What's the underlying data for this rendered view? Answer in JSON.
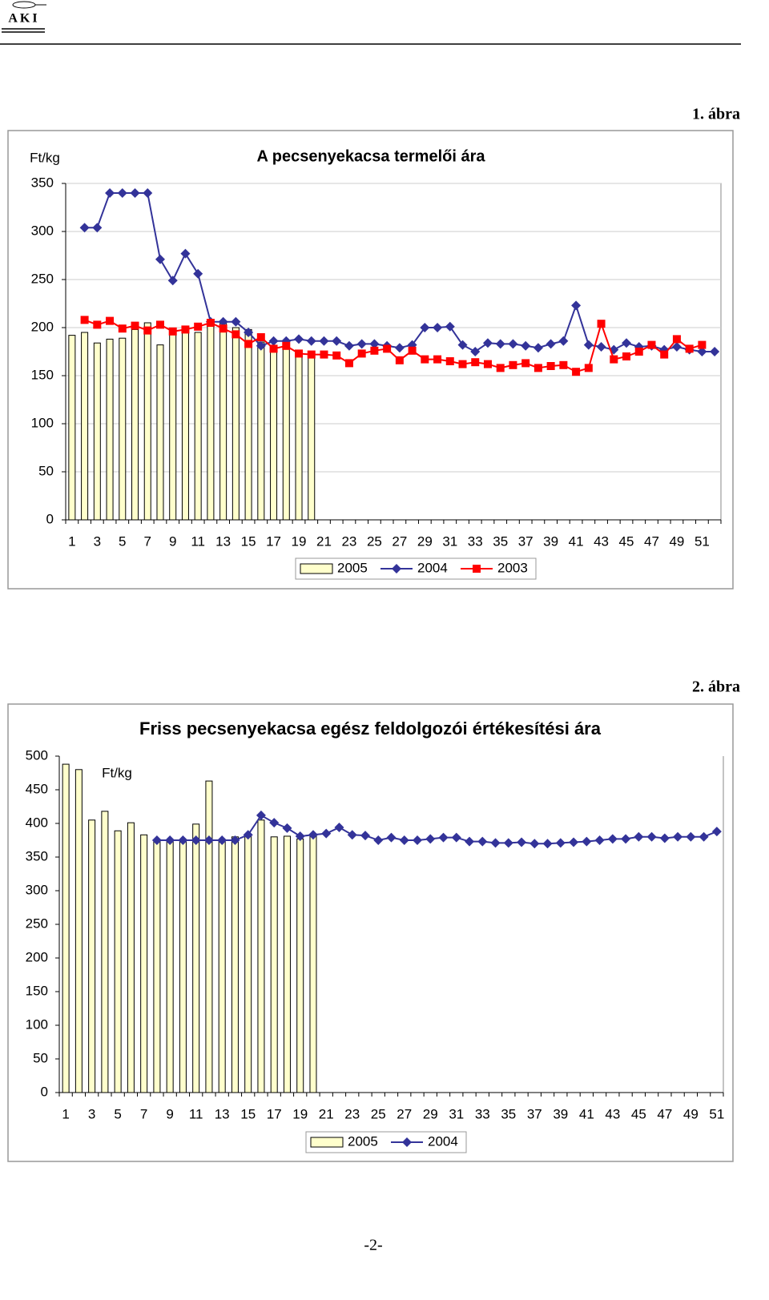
{
  "header": {
    "logo": "AKI"
  },
  "figures": [
    "1. ábra",
    "2. ábra"
  ],
  "footer": {
    "page": "-2-"
  },
  "chart_data": [
    {
      "type": "combo",
      "title": "A pecsenyekacsa termelői ára",
      "y_label": "Ft/kg",
      "categories": [
        "1",
        null,
        "3",
        null,
        "5",
        null,
        "7",
        null,
        "9",
        null,
        "11",
        null,
        "13",
        null,
        "15",
        null,
        "17",
        null,
        "19",
        null,
        "21",
        null,
        "23",
        null,
        "25",
        null,
        "27",
        null,
        "29",
        null,
        "31",
        null,
        "33",
        null,
        "35",
        null,
        "37",
        null,
        "39",
        null,
        "41",
        null,
        "43",
        null,
        "45",
        null,
        "47",
        null,
        "49",
        null,
        "51",
        null
      ],
      "series": [
        {
          "name": "2005",
          "type": "bar",
          "color": "#ffffcc",
          "values": [
            192,
            195,
            184,
            188,
            189,
            198,
            205,
            182,
            198,
            198,
            195,
            205,
            205,
            200,
            198,
            185,
            180,
            180,
            175,
            175,
            null,
            null,
            null,
            null,
            null,
            null,
            null,
            null,
            null,
            null,
            null,
            null,
            null,
            null,
            null,
            null,
            null,
            null,
            null,
            null,
            null,
            null,
            null,
            null,
            null,
            null,
            null,
            null,
            null,
            null,
            null,
            null
          ]
        },
        {
          "name": "2004",
          "type": "line",
          "marker": "diamond",
          "color": "#333399",
          "values": [
            null,
            304,
            304,
            340,
            340,
            340,
            340,
            271,
            249,
            277,
            256,
            206,
            206,
            206,
            195,
            181,
            186,
            186,
            188,
            186,
            186,
            186,
            181,
            183,
            183,
            181,
            179,
            182,
            200,
            200,
            201,
            182,
            175,
            184,
            183,
            183,
            181,
            179,
            183,
            186,
            223,
            182,
            180,
            177,
            184,
            180,
            181,
            177,
            180,
            177,
            175,
            175
          ]
        },
        {
          "name": "2003",
          "type": "line",
          "marker": "square",
          "color": "#ff0000",
          "values": [
            null,
            208,
            203,
            207,
            199,
            202,
            197,
            203,
            196,
            198,
            201,
            205,
            199,
            193,
            183,
            190,
            178,
            181,
            173,
            172,
            172,
            171,
            163,
            173,
            176,
            178,
            166,
            176,
            167,
            167,
            165,
            162,
            164,
            162,
            158,
            161,
            163,
            158,
            160,
            161,
            154,
            158,
            204,
            167,
            170,
            175,
            182,
            172,
            188,
            178,
            182,
            null
          ]
        }
      ],
      "ylim": [
        0,
        350
      ],
      "yticks": [
        0,
        50,
        100,
        150,
        200,
        250,
        300,
        350
      ],
      "grid": true
    },
    {
      "type": "combo",
      "title": "Friss pecsenyekacsa egész feldolgozói értékesítési ára",
      "y_label": "Ft/kg",
      "categories": [
        "1",
        null,
        "3",
        null,
        "5",
        null,
        "7",
        null,
        "9",
        null,
        "11",
        null,
        "13",
        null,
        "15",
        null,
        "17",
        null,
        "19",
        null,
        "21",
        null,
        "23",
        null,
        "25",
        null,
        "27",
        null,
        "29",
        null,
        "31",
        null,
        "33",
        null,
        "35",
        null,
        "37",
        null,
        "39",
        null,
        "41",
        null,
        "43",
        null,
        "45",
        null,
        "47",
        null,
        "49",
        null,
        "51"
      ],
      "series": [
        {
          "name": "2005",
          "type": "bar",
          "color": "#ffffcc",
          "values": [
            488,
            480,
            405,
            418,
            389,
            401,
            383,
            374,
            375,
            375,
            399,
            463,
            375,
            380,
            382,
            405,
            380,
            381,
            377,
            381,
            null,
            null,
            null,
            null,
            null,
            null,
            null,
            null,
            null,
            null,
            null,
            null,
            null,
            null,
            null,
            null,
            null,
            null,
            null,
            null,
            null,
            null,
            null,
            null,
            null,
            null,
            null,
            null,
            null,
            null,
            null
          ]
        },
        {
          "name": "2004",
          "type": "line",
          "marker": "diamond",
          "color": "#333399",
          "values": [
            null,
            null,
            null,
            null,
            null,
            null,
            null,
            375,
            375,
            375,
            375,
            375,
            375,
            375,
            383,
            412,
            401,
            393,
            381,
            383,
            385,
            394,
            383,
            382,
            375,
            379,
            375,
            375,
            377,
            379,
            379,
            373,
            373,
            371,
            371,
            372,
            370,
            370,
            371,
            372,
            373,
            375,
            377,
            377,
            380,
            380,
            378,
            380,
            380,
            380,
            388
          ]
        }
      ],
      "ylim": [
        0,
        500
      ],
      "yticks": [
        0,
        50,
        100,
        150,
        200,
        250,
        300,
        350,
        400,
        450,
        500
      ],
      "grid": false
    }
  ]
}
